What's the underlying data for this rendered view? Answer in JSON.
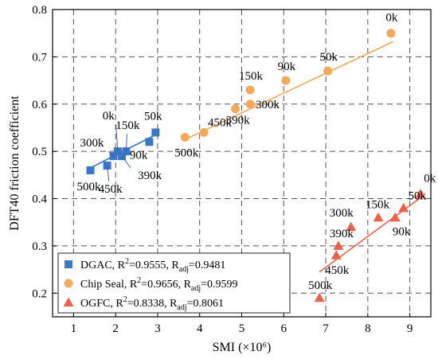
{
  "chart_data": {
    "type": "scatter",
    "xlabel": "SMI (×10⁶)",
    "ylabel": "DFT40 friction coefficient",
    "xlim": [
      0.5,
      9.5
    ],
    "ylim": [
      0.15,
      0.8
    ],
    "xticks": [
      1,
      2,
      3,
      4,
      5,
      6,
      7,
      8,
      9
    ],
    "yticks": [
      0.2,
      0.3,
      0.4,
      0.5,
      0.6,
      0.7,
      0.8
    ],
    "grid": "dashed",
    "legend_position": "bottom-left",
    "series": [
      {
        "name": "DGAC",
        "legend_parts": {
          "name": "DGAC, R",
          "sup": "2",
          "mid": "=0.9555, R",
          "sub": "adj",
          "end": "=0.9481"
        },
        "marker": "square",
        "color": "#3a78c3",
        "points": [
          {
            "label": "0k",
            "x": 2.05,
            "y": 0.5
          },
          {
            "label": "50k",
            "x": 2.95,
            "y": 0.54
          },
          {
            "label": "90k",
            "x": 2.8,
            "y": 0.52
          },
          {
            "label": "150k",
            "x": 2.25,
            "y": 0.5
          },
          {
            "label": "300k",
            "x": 1.95,
            "y": 0.49
          },
          {
            "label": "390k",
            "x": 2.15,
            "y": 0.49
          },
          {
            "label": "450k",
            "x": 1.8,
            "y": 0.47
          },
          {
            "label": "500k",
            "x": 1.4,
            "y": 0.46
          }
        ],
        "trend": [
          [
            1.4,
            0.465
          ],
          [
            2.95,
            0.535
          ]
        ]
      },
      {
        "name": "Chip Seal",
        "legend_parts": {
          "name": "Chip Seal, R",
          "sup": "2",
          "mid": "=0.9656, R",
          "sub": "adj",
          "end": "=0.9599"
        },
        "marker": "circle",
        "color": "#f5a95a",
        "points": [
          {
            "label": "0k",
            "x": 8.55,
            "y": 0.75
          },
          {
            "label": "50k",
            "x": 7.05,
            "y": 0.67
          },
          {
            "label": "90k",
            "x": 6.05,
            "y": 0.65
          },
          {
            "label": "150k",
            "x": 5.2,
            "y": 0.63
          },
          {
            "label": "300k",
            "x": 5.2,
            "y": 0.6
          },
          {
            "label": "390k",
            "x": 4.85,
            "y": 0.59
          },
          {
            "label": "450k",
            "x": 4.1,
            "y": 0.54
          },
          {
            "label": "500k",
            "x": 3.65,
            "y": 0.53
          }
        ],
        "trend": [
          [
            3.65,
            0.525
          ],
          [
            8.6,
            0.732
          ]
        ]
      },
      {
        "name": "OGFC",
        "legend_parts": {
          "name": "OGFC, R",
          "sup": "2",
          "mid": "=0.8338, R",
          "sub": "adj",
          "end": "=0.8061"
        },
        "marker": "triangle",
        "color": "#e8634a",
        "points": [
          {
            "label": "0k",
            "x": 9.25,
            "y": 0.41
          },
          {
            "label": "50k",
            "x": 8.85,
            "y": 0.38
          },
          {
            "label": "90k",
            "x": 8.65,
            "y": 0.36
          },
          {
            "label": "150k",
            "x": 8.25,
            "y": 0.36
          },
          {
            "label": "300k",
            "x": 7.6,
            "y": 0.34
          },
          {
            "label": "390k",
            "x": 7.3,
            "y": 0.3
          },
          {
            "label": "450k",
            "x": 7.25,
            "y": 0.28
          },
          {
            "label": "500k",
            "x": 6.85,
            "y": 0.19
          }
        ],
        "trend": [
          [
            6.85,
            0.245
          ],
          [
            9.3,
            0.405
          ]
        ]
      }
    ]
  }
}
